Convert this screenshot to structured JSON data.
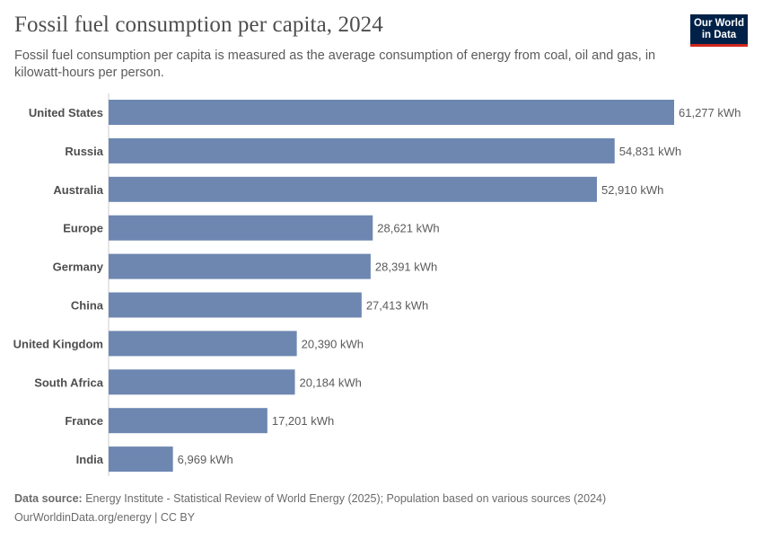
{
  "title": "Fossil fuel consumption per capita, 2024",
  "subtitle": "Fossil fuel consumption per capita is measured as the average consumption of energy from coal, oil and gas, in kilowatt-hours per person.",
  "logo": {
    "line1": "Our World",
    "line2": "in Data"
  },
  "footer": {
    "source_label": "Data source:",
    "source_text": "Energy Institute - Statistical Review of World Energy (2025); Population based on various sources (2024)",
    "url": "OurWorldinData.org/energy",
    "separator": "|",
    "license": "CC BY"
  },
  "colors": {
    "bar": "#6d87b1",
    "axis": "#cccccc",
    "label": "#4e4e4e",
    "value": "#5b5b5b"
  },
  "chart_data": {
    "type": "bar",
    "orientation": "horizontal",
    "unit": "kWh",
    "categories": [
      "United States",
      "Russia",
      "Australia",
      "Europe",
      "Germany",
      "China",
      "United Kingdom",
      "South Africa",
      "France",
      "India"
    ],
    "values": [
      61277,
      54831,
      52910,
      28621,
      28391,
      27413,
      20390,
      20184,
      17201,
      6969
    ],
    "value_labels": [
      "61,277 kWh",
      "54,831 kWh",
      "52,910 kWh",
      "28,621 kWh",
      "28,391 kWh",
      "27,413 kWh",
      "20,390 kWh",
      "20,184 kWh",
      "17,201 kWh",
      "6,969 kWh"
    ],
    "xlim": [
      0,
      61277
    ],
    "grid": false,
    "legend": "none"
  }
}
